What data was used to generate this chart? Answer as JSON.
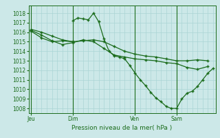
{
  "bg_color": "#cce8e8",
  "grid_color": "#aad4d4",
  "line_color": "#1a6b1a",
  "title": "Pression niveau de la mer( hPa )",
  "ylabel_ticks": [
    1008,
    1009,
    1010,
    1011,
    1012,
    1013,
    1014,
    1015,
    1016,
    1017,
    1018
  ],
  "ylim": [
    1007.5,
    1018.8
  ],
  "xtick_labels": [
    "Jeu",
    "Dim",
    "Ven",
    "Sam"
  ],
  "xtick_positions": [
    0,
    8,
    20,
    28
  ],
  "xlim": [
    -0.5,
    35.5
  ],
  "series1_x": [
    0,
    2,
    4,
    6,
    8,
    10,
    12,
    14,
    16,
    18,
    20,
    22,
    24,
    26,
    28,
    30,
    32,
    34
  ],
  "series1_y": [
    1016.3,
    1016.0,
    1015.6,
    1015.2,
    1015.0,
    1015.1,
    1015.2,
    1015.0,
    1014.5,
    1014.0,
    1013.7,
    1013.5,
    1013.4,
    1013.2,
    1013.0,
    1013.0,
    1013.1,
    1013.0
  ],
  "series2_x": [
    0,
    2,
    4,
    6,
    8,
    10,
    12,
    14,
    16,
    18,
    20,
    22,
    24,
    26,
    28,
    30,
    32,
    34
  ],
  "series2_y": [
    1016.2,
    1015.7,
    1015.1,
    1014.7,
    1014.9,
    1015.2,
    1015.0,
    1014.3,
    1013.6,
    1013.4,
    1013.2,
    1013.1,
    1013.0,
    1012.8,
    1012.7,
    1012.3,
    1012.1,
    1012.4
  ],
  "series3_x": [
    0,
    2,
    4,
    6,
    8
  ],
  "series3_y": [
    1016.1,
    1015.4,
    1015.0,
    1015.1,
    1015.0
  ],
  "series4_x": [
    8,
    9,
    10,
    11,
    12,
    13,
    14,
    15,
    16,
    17,
    18,
    19,
    20,
    21,
    22,
    23,
    24,
    25,
    26,
    27,
    28,
    29,
    30,
    31,
    32,
    33,
    34,
    35
  ],
  "series4_y": [
    1017.2,
    1017.5,
    1017.4,
    1017.3,
    1018.0,
    1017.1,
    1015.3,
    1014.0,
    1013.5,
    1013.4,
    1013.2,
    1012.5,
    1011.7,
    1011.0,
    1010.4,
    1009.7,
    1009.1,
    1008.7,
    1008.2,
    1008.0,
    1008.0,
    1009.0,
    1009.6,
    1009.8,
    1010.3,
    1011.0,
    1011.7,
    1012.2
  ],
  "vlines_x": [
    0,
    8,
    20,
    28
  ],
  "marker": "+",
  "markersize": 3,
  "linewidth": 0.9
}
